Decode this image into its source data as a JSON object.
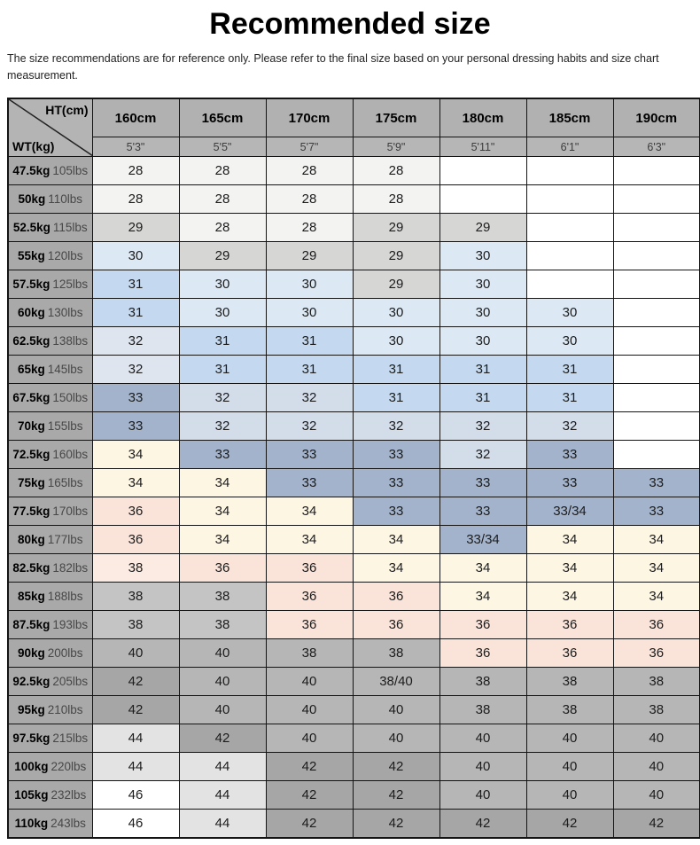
{
  "title": "Recommended size",
  "subtitle": "The size recommendations are for reference only. Please refer to the final size based on your personal dressing habits and size chart measurement.",
  "colors": {
    "wh": "#ffffff",
    "nw": "#f3f3f2",
    "gy29": "#d6d6d5",
    "bl30": "#dce9f5",
    "bl31": "#c4d9ef",
    "gb32a": "#dee5ef",
    "gb32": "#d3dce9",
    "bg33": "#a3b3cb",
    "cm": "#fdf6e3",
    "pk": "#fae3d9",
    "pk38": "#fcebe2",
    "g38": "#c4c4c4",
    "g40": "#b6b6b6",
    "g42": "#a6a6a6",
    "g44": "#e3e3e3",
    "header_bg": "#b1b1b1",
    "subheader_bg": "#b6b6b6",
    "weight_col_bg": "#a9a9a9",
    "border": "#141414"
  },
  "chart_data": {
    "type": "table",
    "corner": {
      "top": "HT(cm)",
      "bottom": "WT(kg)"
    },
    "height_cm": [
      "160cm",
      "165cm",
      "170cm",
      "175cm",
      "180cm",
      "185cm",
      "190cm"
    ],
    "height_ft": [
      "5'3\"",
      "5'5\"",
      "5'7\"",
      "5'9\"",
      "5'11\"",
      "6'1\"",
      "6'3\""
    ],
    "rows": [
      {
        "kg": "47.5kg",
        "lbs": "105lbs",
        "values": [
          "28",
          "28",
          "28",
          "28",
          "",
          "",
          ""
        ],
        "cell_colors": [
          "nw",
          "nw",
          "nw",
          "nw",
          "wh",
          "wh",
          "wh"
        ]
      },
      {
        "kg": "50kg",
        "lbs": "110lbs",
        "values": [
          "28",
          "28",
          "28",
          "28",
          "",
          "",
          ""
        ],
        "cell_colors": [
          "nw",
          "nw",
          "nw",
          "nw",
          "wh",
          "wh",
          "wh"
        ]
      },
      {
        "kg": "52.5kg",
        "lbs": "115lbs",
        "values": [
          "29",
          "28",
          "28",
          "29",
          "29",
          "",
          ""
        ],
        "cell_colors": [
          "gy29",
          "nw",
          "nw",
          "gy29",
          "gy29",
          "wh",
          "wh"
        ]
      },
      {
        "kg": "55kg",
        "lbs": "120lbs",
        "values": [
          "30",
          "29",
          "29",
          "29",
          "30",
          "",
          ""
        ],
        "cell_colors": [
          "bl30",
          "gy29",
          "gy29",
          "gy29",
          "bl30",
          "wh",
          "wh"
        ]
      },
      {
        "kg": "57.5kg",
        "lbs": "125lbs",
        "values": [
          "31",
          "30",
          "30",
          "29",
          "30",
          "",
          ""
        ],
        "cell_colors": [
          "bl31",
          "bl30",
          "bl30",
          "gy29",
          "bl30",
          "wh",
          "wh"
        ]
      },
      {
        "kg": "60kg",
        "lbs": "130lbs",
        "values": [
          "31",
          "30",
          "30",
          "30",
          "30",
          "30",
          ""
        ],
        "cell_colors": [
          "bl31",
          "bl30",
          "bl30",
          "bl30",
          "bl30",
          "bl30",
          "wh"
        ]
      },
      {
        "kg": "62.5kg",
        "lbs": "138lbs",
        "values": [
          "32",
          "31",
          "31",
          "30",
          "30",
          "30",
          ""
        ],
        "cell_colors": [
          "gb32a",
          "bl31",
          "bl31",
          "bl30",
          "bl30",
          "bl30",
          "wh"
        ]
      },
      {
        "kg": "65kg",
        "lbs": "145lbs",
        "values": [
          "32",
          "31",
          "31",
          "31",
          "31",
          "31",
          ""
        ],
        "cell_colors": [
          "gb32a",
          "bl31",
          "bl31",
          "bl31",
          "bl31",
          "bl31",
          "wh"
        ]
      },
      {
        "kg": "67.5kg",
        "lbs": "150lbs",
        "values": [
          "33",
          "32",
          "32",
          "31",
          "31",
          "31",
          ""
        ],
        "cell_colors": [
          "bg33",
          "gb32",
          "gb32",
          "bl31",
          "bl31",
          "bl31",
          "wh"
        ]
      },
      {
        "kg": "70kg",
        "lbs": "155lbs",
        "values": [
          "33",
          "32",
          "32",
          "32",
          "32",
          "32",
          ""
        ],
        "cell_colors": [
          "bg33",
          "gb32",
          "gb32",
          "gb32",
          "gb32",
          "gb32",
          "wh"
        ]
      },
      {
        "kg": "72.5kg",
        "lbs": "160lbs",
        "values": [
          "34",
          "33",
          "33",
          "33",
          "32",
          "33",
          ""
        ],
        "cell_colors": [
          "cm",
          "bg33",
          "bg33",
          "bg33",
          "gb32",
          "bg33",
          "wh"
        ]
      },
      {
        "kg": "75kg",
        "lbs": "165lbs",
        "values": [
          "34",
          "34",
          "33",
          "33",
          "33",
          "33",
          "33"
        ],
        "cell_colors": [
          "cm",
          "cm",
          "bg33",
          "bg33",
          "bg33",
          "bg33",
          "bg33"
        ]
      },
      {
        "kg": "77.5kg",
        "lbs": "170lbs",
        "values": [
          "36",
          "34",
          "34",
          "33",
          "33",
          "33/34",
          "33"
        ],
        "cell_colors": [
          "pk",
          "cm",
          "cm",
          "bg33",
          "bg33",
          "bg33",
          "bg33"
        ]
      },
      {
        "kg": "80kg",
        "lbs": "177lbs",
        "values": [
          "36",
          "34",
          "34",
          "34",
          "33/34",
          "34",
          "34"
        ],
        "cell_colors": [
          "pk",
          "cm",
          "cm",
          "cm",
          "bg33",
          "cm",
          "cm"
        ]
      },
      {
        "kg": "82.5kg",
        "lbs": "182lbs",
        "values": [
          "38",
          "36",
          "36",
          "34",
          "34",
          "34",
          "34"
        ],
        "cell_colors": [
          "pk38",
          "pk",
          "pk",
          "cm",
          "cm",
          "cm",
          "cm"
        ]
      },
      {
        "kg": "85kg",
        "lbs": "188lbs",
        "values": [
          "38",
          "38",
          "36",
          "36",
          "34",
          "34",
          "34"
        ],
        "cell_colors": [
          "g38",
          "g38",
          "pk",
          "pk",
          "cm",
          "cm",
          "cm"
        ]
      },
      {
        "kg": "87.5kg",
        "lbs": "193lbs",
        "values": [
          "38",
          "38",
          "36",
          "36",
          "36",
          "36",
          "36"
        ],
        "cell_colors": [
          "g38",
          "g38",
          "pk",
          "pk",
          "pk",
          "pk",
          "pk"
        ]
      },
      {
        "kg": "90kg",
        "lbs": "200lbs",
        "values": [
          "40",
          "40",
          "38",
          "38",
          "36",
          "36",
          "36"
        ],
        "cell_colors": [
          "g40",
          "g40",
          "g40",
          "g40",
          "pk",
          "pk",
          "pk"
        ]
      },
      {
        "kg": "92.5kg",
        "lbs": "205lbs",
        "values": [
          "42",
          "40",
          "40",
          "38/40",
          "38",
          "38",
          "38"
        ],
        "cell_colors": [
          "g42",
          "g40",
          "g40",
          "g40",
          "g40",
          "g40",
          "g40"
        ]
      },
      {
        "kg": "95kg",
        "lbs": "210lbs",
        "values": [
          "42",
          "40",
          "40",
          "40",
          "38",
          "38",
          "38"
        ],
        "cell_colors": [
          "g42",
          "g40",
          "g40",
          "g40",
          "g40",
          "g40",
          "g40"
        ]
      },
      {
        "kg": "97.5kg",
        "lbs": "215lbs",
        "values": [
          "44",
          "42",
          "40",
          "40",
          "40",
          "40",
          "40"
        ],
        "cell_colors": [
          "g44",
          "g42",
          "g40",
          "g40",
          "g40",
          "g40",
          "g40"
        ]
      },
      {
        "kg": "100kg",
        "lbs": "220lbs",
        "values": [
          "44",
          "44",
          "42",
          "42",
          "40",
          "40",
          "40"
        ],
        "cell_colors": [
          "g44",
          "g44",
          "g42",
          "g42",
          "g40",
          "g40",
          "g40"
        ]
      },
      {
        "kg": "105kg",
        "lbs": "232lbs",
        "values": [
          "46",
          "44",
          "42",
          "42",
          "40",
          "40",
          "40"
        ],
        "cell_colors": [
          "wh",
          "g44",
          "g42",
          "g42",
          "g40",
          "g40",
          "g40"
        ]
      },
      {
        "kg": "110kg",
        "lbs": "243lbs",
        "values": [
          "46",
          "44",
          "42",
          "42",
          "42",
          "42",
          "42"
        ],
        "cell_colors": [
          "wh",
          "g44",
          "g42",
          "g42",
          "g42",
          "g42",
          "g42"
        ]
      }
    ]
  }
}
